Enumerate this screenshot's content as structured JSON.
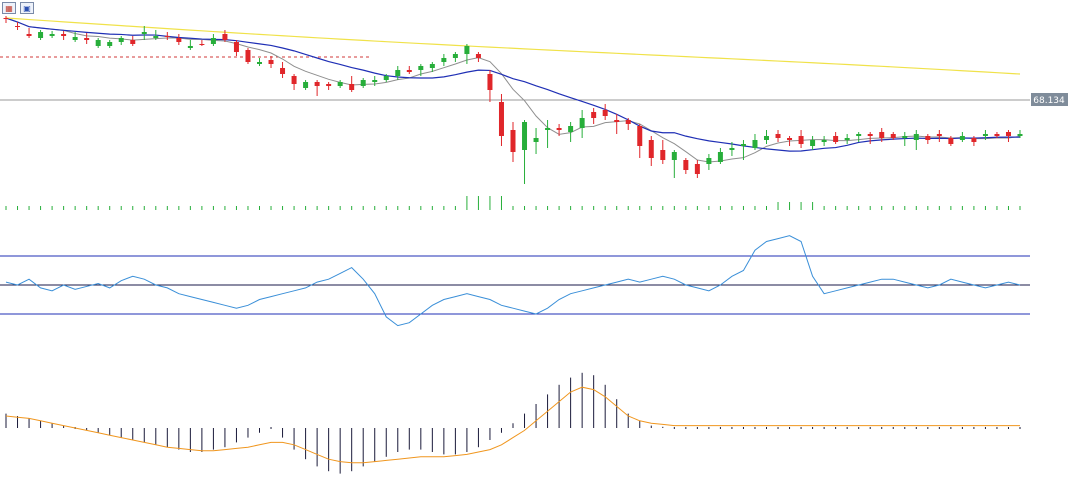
{
  "toolbar": {
    "icons": [
      "grid-icon",
      "chart-properties-icon"
    ]
  },
  "price_label": "68.134",
  "colors": {
    "bull": "#27ae3a",
    "bear": "#e0262a",
    "ma_fast": "#8f8f8f",
    "ma_mid": "#1f2fb5",
    "ma_slow": "#f0e24a",
    "dashed_level": "#d23a3a",
    "rsi_line": "#3a8fd8",
    "rsi_levels": "#1f2fb5",
    "macd_hist": "#1a1a3a",
    "macd_signal": "#f0961e",
    "price_line": "#9a9a9a",
    "price_tag_bg": "#7f8c9a"
  },
  "chart_data": [
    {
      "type": "candlestick",
      "panel": "price",
      "current_price": 68.134,
      "ohlc": [
        [
          18,
          18,
          16,
          23
        ],
        [
          26,
          26,
          22,
          30
        ],
        [
          34,
          36,
          28,
          38
        ],
        [
          38,
          32,
          30,
          40
        ],
        [
          36,
          34,
          31,
          38
        ],
        [
          34,
          36,
          31,
          40
        ],
        [
          40,
          37,
          32,
          42
        ],
        [
          38,
          40,
          33,
          44
        ],
        [
          46,
          40,
          38,
          48
        ],
        [
          46,
          42,
          40,
          48
        ],
        [
          42,
          38,
          36,
          45
        ],
        [
          40,
          44,
          36,
          46
        ],
        [
          34,
          32,
          26,
          40
        ],
        [
          38,
          36,
          30,
          40
        ],
        [
          36,
          36,
          32,
          40
        ],
        [
          38,
          42,
          34,
          45
        ],
        [
          48,
          46,
          40,
          50
        ],
        [
          44,
          44,
          40,
          46
        ],
        [
          44,
          38,
          34,
          46
        ],
        [
          34,
          40,
          30,
          42
        ],
        [
          42,
          52,
          40,
          56
        ],
        [
          50,
          62,
          48,
          64
        ],
        [
          64,
          62,
          58,
          66
        ],
        [
          60,
          64,
          56,
          68
        ],
        [
          68,
          74,
          62,
          78
        ],
        [
          76,
          84,
          74,
          90
        ],
        [
          88,
          82,
          80,
          90
        ],
        [
          82,
          86,
          80,
          96
        ],
        [
          84,
          86,
          82,
          90
        ],
        [
          86,
          82,
          80,
          88
        ],
        [
          84,
          90,
          76,
          92
        ],
        [
          86,
          80,
          78,
          88
        ],
        [
          82,
          80,
          76,
          86
        ],
        [
          80,
          76,
          74,
          82
        ],
        [
          76,
          70,
          66,
          80
        ],
        [
          70,
          72,
          66,
          74
        ],
        [
          70,
          66,
          64,
          76
        ],
        [
          68,
          64,
          62,
          72
        ],
        [
          62,
          58,
          54,
          66
        ],
        [
          58,
          54,
          52,
          62
        ],
        [
          54,
          46,
          44,
          64
        ],
        [
          54,
          58,
          52,
          62
        ],
        [
          74,
          90,
          70,
          102
        ],
        [
          102,
          136,
          94,
          146
        ],
        [
          130,
          152,
          122,
          162
        ],
        [
          150,
          122,
          120,
          184
        ],
        [
          142,
          138,
          128,
          154
        ],
        [
          130,
          128,
          120,
          148
        ],
        [
          128,
          130,
          124,
          136
        ],
        [
          132,
          126,
          122,
          142
        ],
        [
          128,
          118,
          110,
          138
        ],
        [
          112,
          118,
          108,
          124
        ],
        [
          110,
          116,
          104,
          120
        ],
        [
          120,
          122,
          114,
          134
        ],
        [
          120,
          124,
          118,
          130
        ],
        [
          126,
          146,
          124,
          158
        ],
        [
          140,
          158,
          136,
          166
        ],
        [
          150,
          160,
          140,
          164
        ],
        [
          160,
          152,
          150,
          178
        ],
        [
          160,
          170,
          158,
          174
        ],
        [
          164,
          174,
          160,
          178
        ],
        [
          164,
          158,
          154,
          170
        ],
        [
          162,
          152,
          148,
          164
        ],
        [
          150,
          148,
          142,
          156
        ],
        [
          146,
          144,
          140,
          160
        ],
        [
          148,
          140,
          134,
          150
        ],
        [
          140,
          136,
          130,
          144
        ],
        [
          134,
          138,
          130,
          142
        ],
        [
          138,
          140,
          136,
          146
        ],
        [
          136,
          144,
          130,
          148
        ],
        [
          146,
          140,
          136,
          150
        ],
        [
          142,
          140,
          136,
          146
        ],
        [
          136,
          142,
          132,
          144
        ],
        [
          140,
          138,
          134,
          144
        ],
        [
          136,
          134,
          132,
          142
        ],
        [
          134,
          136,
          132,
          144
        ],
        [
          132,
          138,
          128,
          142
        ],
        [
          134,
          138,
          132,
          140
        ],
        [
          138,
          136,
          132,
          146
        ],
        [
          140,
          134,
          130,
          150
        ],
        [
          136,
          140,
          134,
          144
        ],
        [
          134,
          136,
          130,
          142
        ],
        [
          138,
          144,
          136,
          146
        ],
        [
          140,
          136,
          132,
          142
        ],
        [
          138,
          142,
          136,
          146
        ],
        [
          136,
          134,
          130,
          140
        ],
        [
          134,
          136,
          132,
          138
        ],
        [
          132,
          136,
          130,
          142
        ],
        [
          136,
          134,
          130,
          138
        ]
      ]
    },
    {
      "type": "volume",
      "panel": "volume",
      "values": [
        4,
        4,
        4,
        4,
        4,
        4,
        4,
        4,
        4,
        4,
        4,
        4,
        4,
        4,
        4,
        4,
        4,
        4,
        4,
        4,
        4,
        4,
        4,
        4,
        4,
        4,
        4,
        4,
        4,
        4,
        4,
        4,
        4,
        4,
        4,
        4,
        4,
        4,
        4,
        4,
        4,
        4,
        4,
        4,
        4,
        4,
        4,
        4,
        4,
        4,
        4,
        4,
        4,
        4,
        4,
        4,
        4,
        4,
        4,
        4,
        4,
        4,
        4,
        4,
        4,
        4,
        4,
        4,
        4,
        4,
        4,
        4,
        4,
        4,
        4,
        4,
        4,
        4,
        4,
        4,
        4,
        4,
        4,
        4,
        4,
        4,
        4,
        4,
        4
      ]
    },
    {
      "type": "line",
      "panel": "rsi",
      "levels": [
        70,
        50,
        30
      ],
      "values": [
        52,
        50,
        54,
        48,
        46,
        50,
        47,
        49,
        51,
        48,
        53,
        56,
        54,
        50,
        48,
        44,
        42,
        40,
        38,
        36,
        34,
        36,
        40,
        42,
        44,
        46,
        48,
        52,
        54,
        58,
        62,
        54,
        44,
        28,
        22,
        24,
        30,
        36,
        40,
        42,
        44,
        42,
        40,
        36,
        34,
        32,
        30,
        34,
        40,
        44,
        46,
        48,
        50,
        52,
        54,
        52,
        54,
        56,
        54,
        50,
        48,
        46,
        50,
        56,
        60,
        74,
        80,
        82,
        84,
        80,
        56,
        44,
        46,
        48,
        50,
        52,
        54,
        54,
        52,
        50,
        48,
        50,
        54,
        52,
        50,
        48,
        50,
        52,
        50
      ]
    },
    {
      "type": "bar+line",
      "panel": "macd",
      "histogram": [
        0.6,
        0.5,
        0.4,
        0.3,
        0.2,
        0.1,
        0.0,
        -0.1,
        -0.2,
        -0.3,
        -0.4,
        -0.5,
        -0.6,
        -0.7,
        -0.8,
        -0.9,
        -1.0,
        -1.0,
        -0.9,
        -0.8,
        -0.6,
        -0.4,
        -0.2,
        0.0,
        -0.4,
        -0.9,
        -1.3,
        -1.6,
        -1.8,
        -1.9,
        -1.8,
        -1.6,
        -1.4,
        -1.2,
        -1.0,
        -0.9,
        -0.9,
        -1.0,
        -1.1,
        -1.1,
        -1.0,
        -0.8,
        -0.5,
        -0.2,
        0.2,
        0.6,
        1.0,
        1.4,
        1.8,
        2.1,
        2.3,
        2.2,
        1.8,
        1.2,
        0.6,
        0.3,
        0.1,
        0.05,
        0.0,
        0.0,
        0.0,
        0.0,
        0.0,
        0.0,
        0.0,
        0.0,
        0.0,
        0.0,
        0.0,
        0.0,
        0.0,
        0.0,
        0.0,
        0.0,
        0.0,
        0.0,
        0.0,
        0.0,
        0.0,
        0.0,
        0.0,
        0.0,
        0.0,
        0.0,
        0.0,
        0.0,
        0.0,
        0.0,
        0.0
      ],
      "signal": [
        0.5,
        0.45,
        0.4,
        0.3,
        0.2,
        0.1,
        0.0,
        -0.1,
        -0.2,
        -0.3,
        -0.4,
        -0.5,
        -0.6,
        -0.7,
        -0.8,
        -0.85,
        -0.9,
        -0.95,
        -0.95,
        -0.9,
        -0.85,
        -0.8,
        -0.7,
        -0.6,
        -0.6,
        -0.7,
        -0.9,
        -1.1,
        -1.3,
        -1.4,
        -1.45,
        -1.45,
        -1.4,
        -1.35,
        -1.3,
        -1.25,
        -1.2,
        -1.2,
        -1.2,
        -1.15,
        -1.1,
        -1.0,
        -0.9,
        -0.7,
        -0.4,
        -0.1,
        0.3,
        0.7,
        1.1,
        1.5,
        1.7,
        1.6,
        1.3,
        0.9,
        0.5,
        0.3,
        0.2,
        0.15,
        0.1,
        0.1,
        0.1,
        0.1,
        0.1,
        0.1,
        0.1,
        0.1,
        0.1,
        0.1,
        0.1,
        0.1,
        0.1,
        0.1,
        0.1,
        0.1,
        0.1,
        0.1,
        0.1,
        0.1,
        0.1,
        0.1,
        0.1,
        0.1,
        0.1,
        0.1,
        0.1,
        0.1,
        0.1,
        0.1,
        0.1
      ]
    }
  ]
}
